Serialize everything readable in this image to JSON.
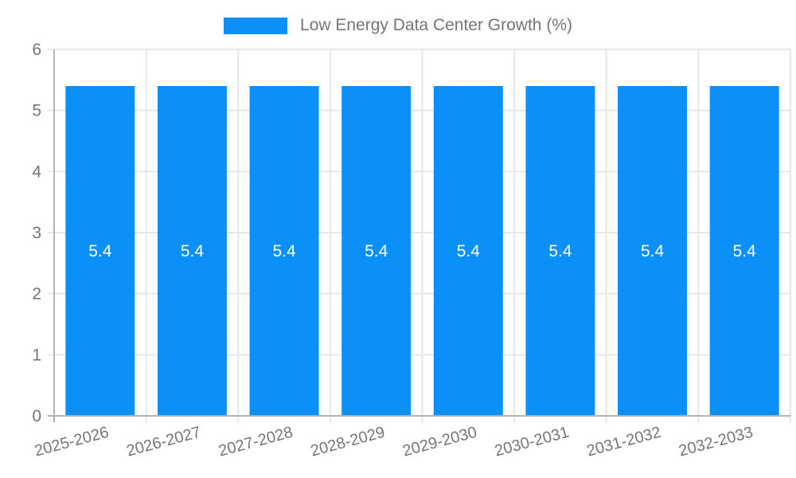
{
  "legend": {
    "label": "Low Energy Data Center Growth (%)"
  },
  "chart_data": {
    "type": "bar",
    "title": "Low Energy Data Center Growth (%)",
    "categories": [
      "2025-2026",
      "2026-2027",
      "2027-2028",
      "2028-2029",
      "2029-2030",
      "2030-2031",
      "2031-2032",
      "2032-2033"
    ],
    "values": [
      5.4,
      5.4,
      5.4,
      5.4,
      5.4,
      5.4,
      5.4,
      5.4
    ],
    "bar_labels": [
      "5.4",
      "5.4",
      "5.4",
      "5.4",
      "5.4",
      "5.4",
      "5.4",
      "5.4"
    ],
    "xlabel": "",
    "ylabel": "",
    "ylim": [
      0,
      6
    ],
    "yticks": [
      0,
      1,
      2,
      3,
      4,
      5,
      6
    ],
    "grid": true,
    "legend_position": "top",
    "colors": {
      "bar": "#0a90f8",
      "text": "#757575",
      "grid": "#e6e6e6",
      "axis": "#b3b3b3",
      "bar_label": "#ffffff",
      "background": "#ffffff"
    }
  }
}
